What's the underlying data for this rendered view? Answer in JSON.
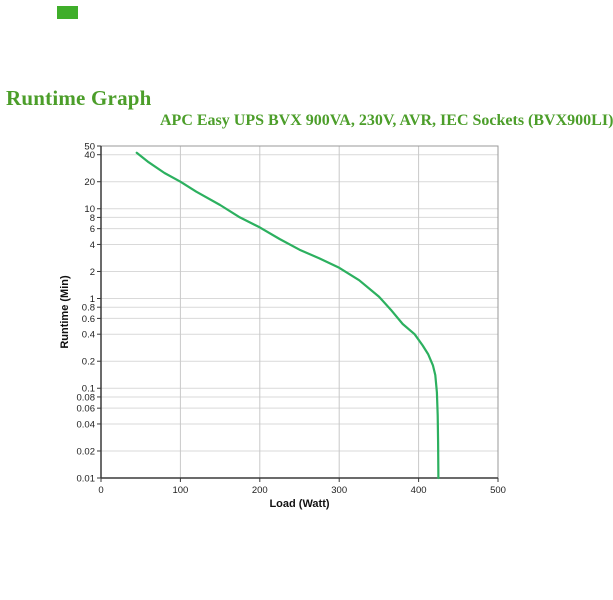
{
  "logo": {
    "name": "brand-logo"
  },
  "page_title": "Runtime Graph",
  "colors": {
    "brand_green": "#3fae2a",
    "title_green": "#4c9e2a",
    "curve_green": "#2cb05f",
    "grid_light": "#d9d9d9",
    "grid_vertical": "#c9c9c9",
    "plot_border": "#999999",
    "axis_dark": "#3a3a3a",
    "tick_text": "#222222",
    "axis_label_text": "#111111"
  },
  "chart_data": {
    "type": "line",
    "title": "APC Easy UPS BVX 900VA, 230V, AVR, IEC Sockets (BVX900LI)",
    "xlabel": "Load (Watt)",
    "ylabel": "Runtime (Min)",
    "x_scale": "linear",
    "y_scale": "log",
    "xlim": [
      0,
      500
    ],
    "ylim": [
      0.01,
      50
    ],
    "x_ticks": [
      "0",
      "100",
      "200",
      "300",
      "400",
      "500"
    ],
    "y_ticks": [
      "50",
      "40",
      "20",
      "10",
      "8",
      "6",
      "4",
      "2",
      "1",
      "0.8",
      "0.6",
      "0.4",
      "0.2",
      "0.1",
      "0.08",
      "0.06",
      "0.04",
      "0.02",
      "0.01"
    ],
    "grid": true,
    "legend": "none",
    "series": [
      {
        "name": "runtime-vs-load",
        "points": [
          [
            45,
            42
          ],
          [
            60,
            33
          ],
          [
            80,
            25
          ],
          [
            100,
            20
          ],
          [
            120,
            15.5
          ],
          [
            150,
            11
          ],
          [
            175,
            8
          ],
          [
            200,
            6.2
          ],
          [
            225,
            4.6
          ],
          [
            250,
            3.5
          ],
          [
            275,
            2.8
          ],
          [
            300,
            2.2
          ],
          [
            325,
            1.6
          ],
          [
            350,
            1.05
          ],
          [
            365,
            0.75
          ],
          [
            380,
            0.52
          ],
          [
            395,
            0.4
          ],
          [
            405,
            0.3
          ],
          [
            412,
            0.24
          ],
          [
            418,
            0.18
          ],
          [
            421,
            0.14
          ],
          [
            423,
            0.09
          ],
          [
            424,
            0.05
          ],
          [
            424.5,
            0.025
          ],
          [
            425,
            0.01
          ]
        ]
      }
    ]
  }
}
